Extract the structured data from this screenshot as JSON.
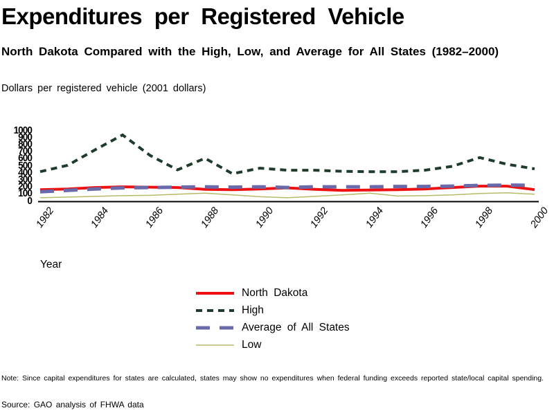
{
  "header": {
    "title": "Expenditures per Registered Vehicle",
    "subtitle": "North Dakota Compared with the High, Low, and Average for All States (1982–2000)",
    "unit_label": "Dollars per registered vehicle (2001 dollars)"
  },
  "chart_data": {
    "type": "line",
    "title": "Expenditures per Registered Vehicle",
    "xlabel": "Year",
    "ylabel": "Dollars per registered vehicle (2001 dollars)",
    "x": [
      1982,
      1983,
      1984,
      1985,
      1986,
      1987,
      1988,
      1989,
      1990,
      1991,
      1992,
      1993,
      1994,
      1995,
      1996,
      1997,
      1998,
      1999,
      2000
    ],
    "xticks": [
      1982,
      1984,
      1986,
      1988,
      1990,
      1992,
      1994,
      1996,
      1998,
      2000
    ],
    "ylim": [
      0,
      1000
    ],
    "yticks": [
      0,
      100,
      200,
      300,
      400,
      500,
      600,
      700,
      800,
      900,
      1000
    ],
    "grid": false,
    "legend_position": "bottom-center",
    "series": [
      {
        "name": "North Dakota",
        "color": "#ee1111",
        "dash": "",
        "width": 4,
        "values": [
          155,
          165,
          185,
          195,
          190,
          185,
          160,
          155,
          165,
          180,
          160,
          145,
          150,
          155,
          165,
          185,
          205,
          205,
          155
        ]
      },
      {
        "name": "High",
        "color": "#1e3b2b",
        "dash": "9 7",
        "width": 4,
        "values": [
          410,
          500,
          720,
          930,
          640,
          435,
          600,
          380,
          460,
          430,
          430,
          415,
          410,
          410,
          430,
          485,
          610,
          515,
          450
        ]
      },
      {
        "name": "Average of All States",
        "color": "#6a6aab",
        "dash": "20 14",
        "width": 5,
        "values": [
          125,
          145,
          165,
          180,
          185,
          190,
          195,
          190,
          195,
          185,
          195,
          195,
          195,
          200,
          200,
          205,
          215,
          220,
          215
        ]
      },
      {
        "name": "Low",
        "color": "#b5ba67",
        "dash": "",
        "width": 1.5,
        "values": [
          40,
          50,
          60,
          70,
          75,
          90,
          105,
          80,
          55,
          40,
          60,
          80,
          105,
          65,
          70,
          80,
          100,
          110,
          90
        ]
      }
    ]
  },
  "footer": {
    "note": "Note: Since capital expenditures for states are calculated, states may show no expenditures when federal funding exceeds reported state/local capital spending.",
    "source": "Source: GAO analysis of FHWA data"
  }
}
